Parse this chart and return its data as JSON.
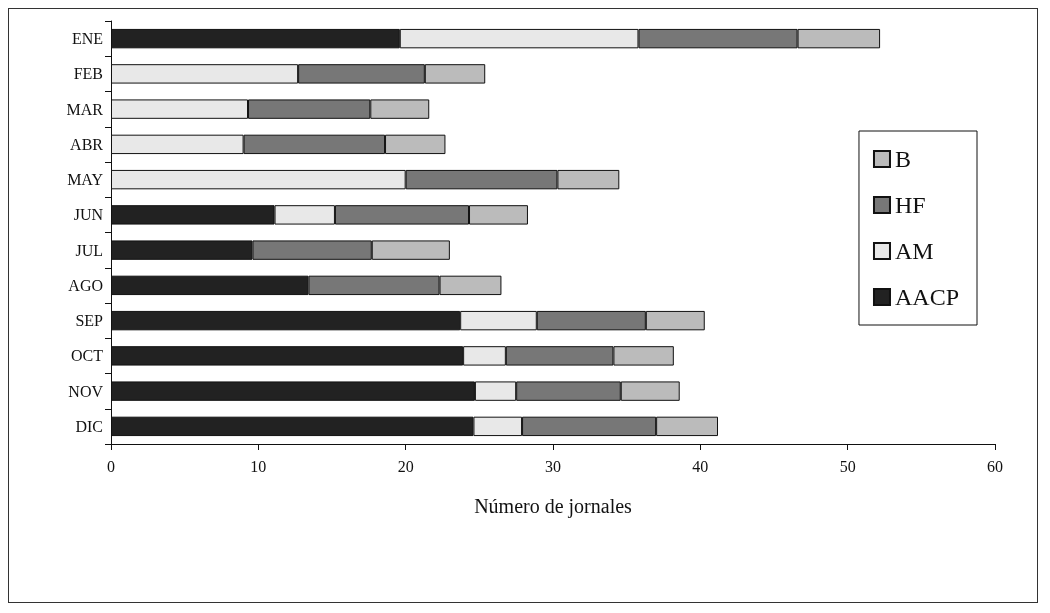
{
  "chart_data": {
    "type": "bar",
    "orientation": "horizontal",
    "stacked": true,
    "xlabel": "Número de jornales",
    "categories": [
      "ENE",
      "FEB",
      "MAR",
      "ABR",
      "MAY",
      "JUN",
      "JUL",
      "AGO",
      "SEP",
      "OCT",
      "NOV",
      "DIC"
    ],
    "series": [
      {
        "name": "AACP",
        "color": "#222222",
        "values": [
          19.6,
          0,
          0,
          0,
          0,
          11.1,
          9.6,
          13.4,
          23.7,
          23.9,
          24.7,
          24.6
        ]
      },
      {
        "name": "AM",
        "color": "#e8e8e8",
        "values": [
          16.2,
          12.7,
          9.3,
          9.0,
          20.0,
          4.1,
          0,
          0,
          5.2,
          2.9,
          2.8,
          3.3
        ]
      },
      {
        "name": "HF",
        "color": "#777777",
        "values": [
          10.8,
          8.6,
          8.3,
          9.6,
          10.3,
          9.1,
          8.1,
          8.9,
          7.4,
          7.3,
          7.1,
          9.1
        ]
      },
      {
        "name": "B",
        "color": "#bbbbbb",
        "values": [
          5.6,
          4.1,
          4.0,
          4.1,
          4.2,
          4.0,
          5.3,
          4.2,
          4.0,
          4.1,
          4.0,
          4.2
        ]
      }
    ],
    "xlim": [
      0,
      60
    ],
    "xticks": [
      0,
      10,
      20,
      30,
      40,
      50,
      60
    ],
    "grid": false,
    "legend": "right"
  }
}
